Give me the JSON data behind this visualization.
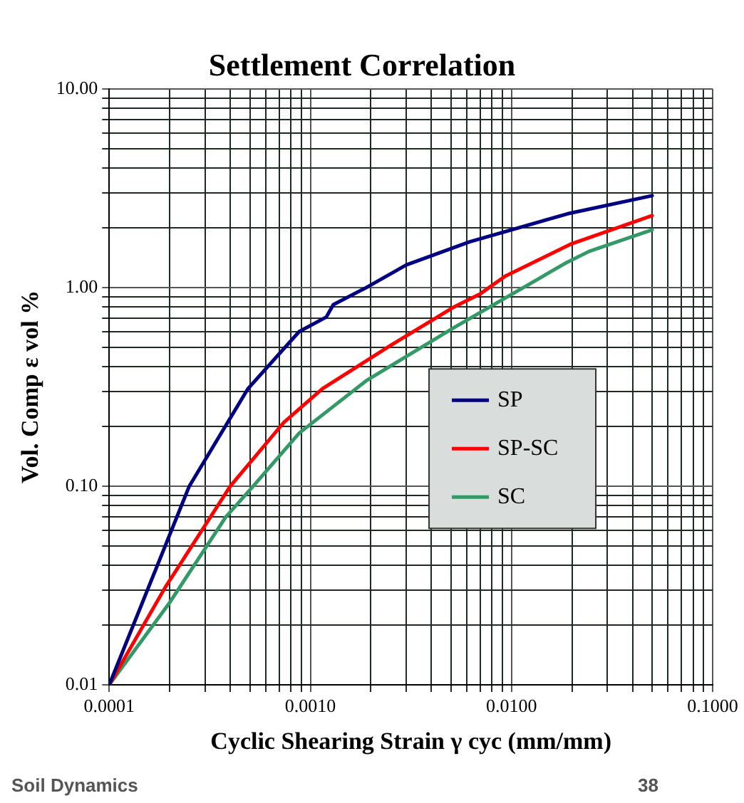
{
  "chart_data": {
    "type": "line",
    "title": "Settlement Correlation",
    "xlabel": "Cyclic Shearing Strain γ cyc (mm/mm)",
    "ylabel": "Vol. Comp ε vol %",
    "annotations": [
      "Soil Dynamics",
      "38"
    ],
    "log": "xy",
    "grid": true,
    "legend": "right",
    "line_style": "solid",
    "marker": "none",
    "xlim": [
      0.0001,
      0.1
    ],
    "ylim": [
      0.01,
      10
    ],
    "xticks": [
      {
        "value": 0.0001,
        "label": "0.0001"
      },
      {
        "value": 0.0002,
        "label": null
      },
      {
        "value": 0.0003,
        "label": null
      },
      {
        "value": 0.0004,
        "label": null
      },
      {
        "value": 0.0005,
        "label": null
      },
      {
        "value": 0.0006,
        "label": null
      },
      {
        "value": 0.0007,
        "label": null
      },
      {
        "value": 0.0008,
        "label": null
      },
      {
        "value": 0.0009,
        "label": null
      },
      {
        "value": 0.001,
        "label": "0.0010"
      },
      {
        "value": 0.002,
        "label": null
      },
      {
        "value": 0.003,
        "label": null
      },
      {
        "value": 0.004,
        "label": null
      },
      {
        "value": 0.005,
        "label": null
      },
      {
        "value": 0.006,
        "label": null
      },
      {
        "value": 0.007,
        "label": null
      },
      {
        "value": 0.008,
        "label": null
      },
      {
        "value": 0.009,
        "label": null
      },
      {
        "value": 0.01,
        "label": "0.0100"
      },
      {
        "value": 0.02,
        "label": null
      },
      {
        "value": 0.03,
        "label": null
      },
      {
        "value": 0.04,
        "label": null
      },
      {
        "value": 0.05,
        "label": null
      },
      {
        "value": 0.06,
        "label": null
      },
      {
        "value": 0.07,
        "label": null
      },
      {
        "value": 0.08,
        "label": null
      },
      {
        "value": 0.09,
        "label": null
      },
      {
        "value": 0.1,
        "label": "0.1000"
      }
    ],
    "yticks": [
      {
        "value": 0.01,
        "label": "0.01"
      },
      {
        "value": 0.02,
        "label": null
      },
      {
        "value": 0.03,
        "label": null
      },
      {
        "value": 0.04,
        "label": null
      },
      {
        "value": 0.05,
        "label": null
      },
      {
        "value": 0.06,
        "label": null
      },
      {
        "value": 0.07,
        "label": null
      },
      {
        "value": 0.08,
        "label": null
      },
      {
        "value": 0.09,
        "label": null
      },
      {
        "value": 0.1,
        "label": "0.10"
      },
      {
        "value": 0.2,
        "label": null
      },
      {
        "value": 0.3,
        "label": null
      },
      {
        "value": 0.4,
        "label": null
      },
      {
        "value": 0.5,
        "label": null
      },
      {
        "value": 0.6,
        "label": null
      },
      {
        "value": 0.7,
        "label": null
      },
      {
        "value": 0.8,
        "label": null
      },
      {
        "value": 0.9,
        "label": null
      },
      {
        "value": 1,
        "label": "1.00"
      },
      {
        "value": 2,
        "label": null
      },
      {
        "value": 3,
        "label": null
      },
      {
        "value": 4,
        "label": null
      },
      {
        "value": 5,
        "label": null
      },
      {
        "value": 6,
        "label": null
      },
      {
        "value": 7,
        "label": null
      },
      {
        "value": 8,
        "label": null
      },
      {
        "value": 9,
        "label": null
      },
      {
        "value": 10,
        "label": "10.00"
      }
    ],
    "series": [
      {
        "name": "SP",
        "color": "#000080",
        "x": [
          0.0001,
          0.00025,
          0.00049,
          0.00088,
          0.0012,
          0.0013,
          0.0019,
          0.003,
          0.0062,
          0.019,
          0.05
        ],
        "values": [
          0.01,
          0.1,
          0.31,
          0.6,
          0.71,
          0.82,
          1.0,
          1.3,
          1.7,
          2.35,
          2.9
        ]
      },
      {
        "name": "SP-SC",
        "color": "#ff0000",
        "x": [
          0.0001,
          0.00019,
          0.0004,
          0.00074,
          0.00115,
          0.0025,
          0.0052,
          0.007,
          0.0093,
          0.0196,
          0.05
        ],
        "values": [
          0.01,
          0.031,
          0.1,
          0.21,
          0.31,
          0.51,
          0.8,
          0.93,
          1.14,
          1.65,
          2.3
        ]
      },
      {
        "name": "SC",
        "color": "#339966",
        "x": [
          0.0001,
          0.0002,
          0.00038,
          0.00052,
          0.00088,
          0.0019,
          0.0052,
          0.0189,
          0.0243,
          0.05
        ],
        "values": [
          0.01,
          0.026,
          0.07,
          0.1,
          0.185,
          0.34,
          0.63,
          1.34,
          1.52,
          1.95
        ]
      }
    ]
  }
}
